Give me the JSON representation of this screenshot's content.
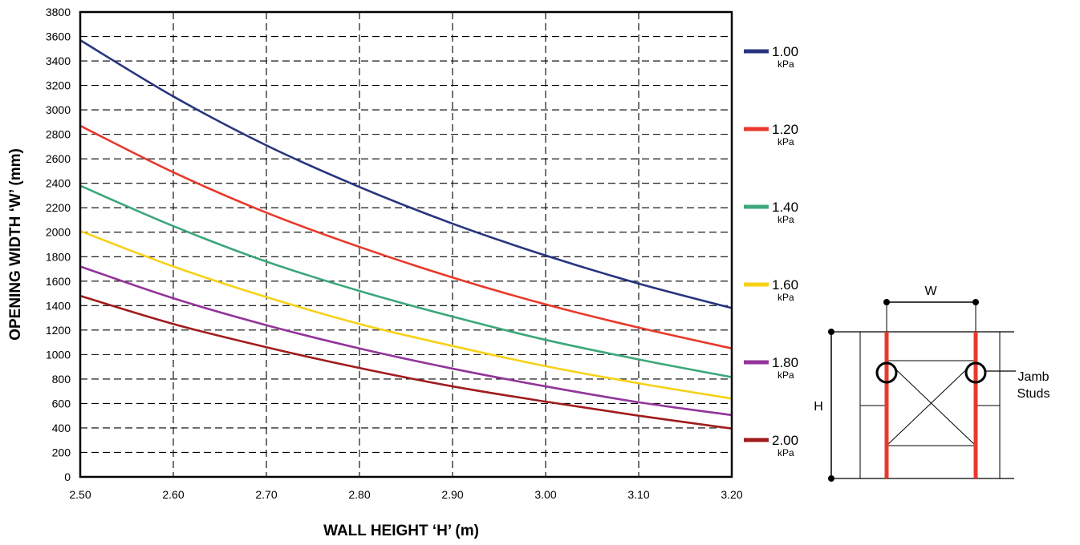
{
  "chart_data": {
    "type": "line",
    "xlabel": "WALL HEIGHT ‘H’ (m)",
    "ylabel": "OPENING WIDTH ‘W’ (mm)",
    "xlim": [
      2.5,
      3.2
    ],
    "ylim": [
      0,
      3800
    ],
    "x_ticks": [
      "2.50",
      "2.60",
      "2.70",
      "2.80",
      "2.90",
      "3.00",
      "3.10",
      "3.20"
    ],
    "y_ticks": [
      "0",
      "200",
      "400",
      "600",
      "800",
      "1000",
      "1200",
      "1400",
      "1600",
      "1800",
      "2000",
      "2200",
      "2400",
      "2600",
      "2800",
      "3000",
      "3200",
      "3400",
      "3600",
      "3800"
    ],
    "grid": true,
    "legend_position": "right",
    "x": [
      2.5,
      2.6,
      2.7,
      2.8,
      2.9,
      3.0,
      3.1,
      3.2
    ],
    "series": [
      {
        "name": "1.00",
        "unit": "kPa",
        "color": "#27357e",
        "values": [
          3570,
          3110,
          2710,
          2370,
          2070,
          1810,
          1580,
          1380
        ]
      },
      {
        "name": "1.20",
        "unit": "kPa",
        "color": "#e8392a",
        "values": [
          2870,
          2490,
          2160,
          1880,
          1630,
          1410,
          1220,
          1050
        ]
      },
      {
        "name": "1.40",
        "unit": "kPa",
        "color": "#3ca77a",
        "values": [
          2380,
          2050,
          1760,
          1520,
          1310,
          1120,
          960,
          815
        ]
      },
      {
        "name": "1.60",
        "unit": "kPa",
        "color": "#f7d117",
        "values": [
          2010,
          1720,
          1470,
          1250,
          1070,
          905,
          765,
          640
        ]
      },
      {
        "name": "1.80",
        "unit": "kPa",
        "color": "#92349a",
        "values": [
          1720,
          1460,
          1240,
          1050,
          885,
          740,
          610,
          505
        ]
      },
      {
        "name": "2.00",
        "unit": "kPa",
        "color": "#a01c1c",
        "values": [
          1480,
          1250,
          1060,
          890,
          740,
          615,
          500,
          395
        ]
      }
    ]
  },
  "diagram": {
    "width_label": "W",
    "height_label": "H",
    "stud_label_line1": "Jamb",
    "stud_label_line2": "Studs"
  }
}
